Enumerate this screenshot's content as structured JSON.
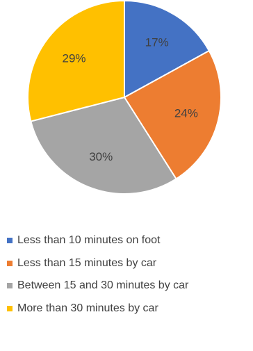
{
  "chart_data": {
    "type": "pie",
    "title": "",
    "series": [
      {
        "values": [
          17,
          24,
          30,
          29
        ],
        "unit": "%"
      }
    ],
    "categories": [
      "Less than 10 minutes on foot",
      "Less than 15 minutes by car",
      "Between 15 and 30 minutes by car",
      "More than 30 minutes by car"
    ],
    "data_labels": [
      "17%",
      "24%",
      "30%",
      "29%"
    ],
    "colors": [
      "#4472C4",
      "#ED7D31",
      "#A5A5A5",
      "#FFC000"
    ],
    "start_angle_deg": 0,
    "direction": "clockwise",
    "legend": {
      "position": "bottom"
    }
  }
}
